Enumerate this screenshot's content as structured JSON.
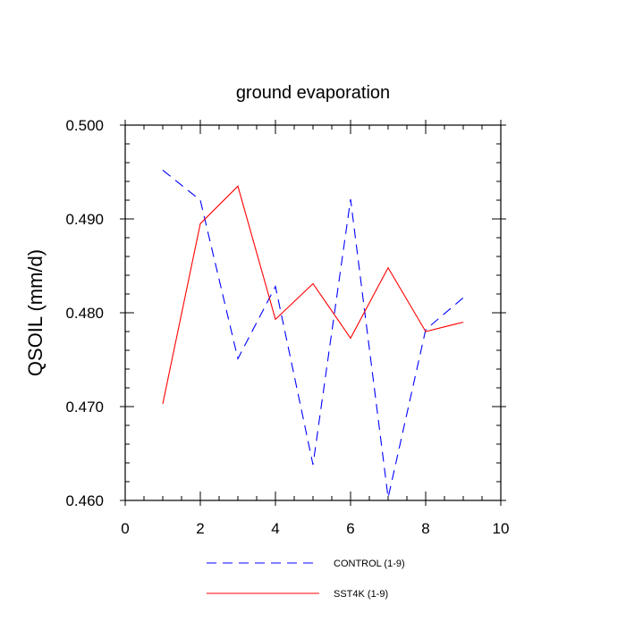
{
  "chart_data": {
    "type": "line",
    "title": "ground evaporation",
    "xlabel": "",
    "ylabel": "QSOIL  (mm/d)",
    "xlim": [
      0,
      10
    ],
    "ylim": [
      0.46,
      0.5
    ],
    "x_ticks": [
      0,
      2,
      4,
      6,
      8,
      10
    ],
    "x_tick_labels": [
      "0",
      "2",
      "4",
      "6",
      "8",
      "10"
    ],
    "y_ticks": [
      0.46,
      0.47,
      0.48,
      0.49,
      0.5
    ],
    "y_tick_labels": [
      "0.460",
      "0.470",
      "0.480",
      "0.490",
      "0.500"
    ],
    "grid": false,
    "legend_position": "bottom",
    "series": [
      {
        "name": "CONTROL (1-9)",
        "color": "#0000ff",
        "dash": "dashed",
        "x": [
          1,
          2,
          3,
          4,
          5,
          6,
          7,
          8,
          9
        ],
        "values": [
          0.4952,
          0.492,
          0.4751,
          0.4828,
          0.4638,
          0.4921,
          0.4603,
          0.4782,
          0.4816
        ]
      },
      {
        "name": "SST4K (1-9)",
        "color": "#ff0000",
        "dash": "solid",
        "x": [
          1,
          2,
          3,
          4,
          5,
          6,
          7,
          8,
          9
        ],
        "values": [
          0.4703,
          0.4895,
          0.4935,
          0.4793,
          0.4831,
          0.4773,
          0.4848,
          0.478,
          0.479
        ]
      }
    ]
  }
}
